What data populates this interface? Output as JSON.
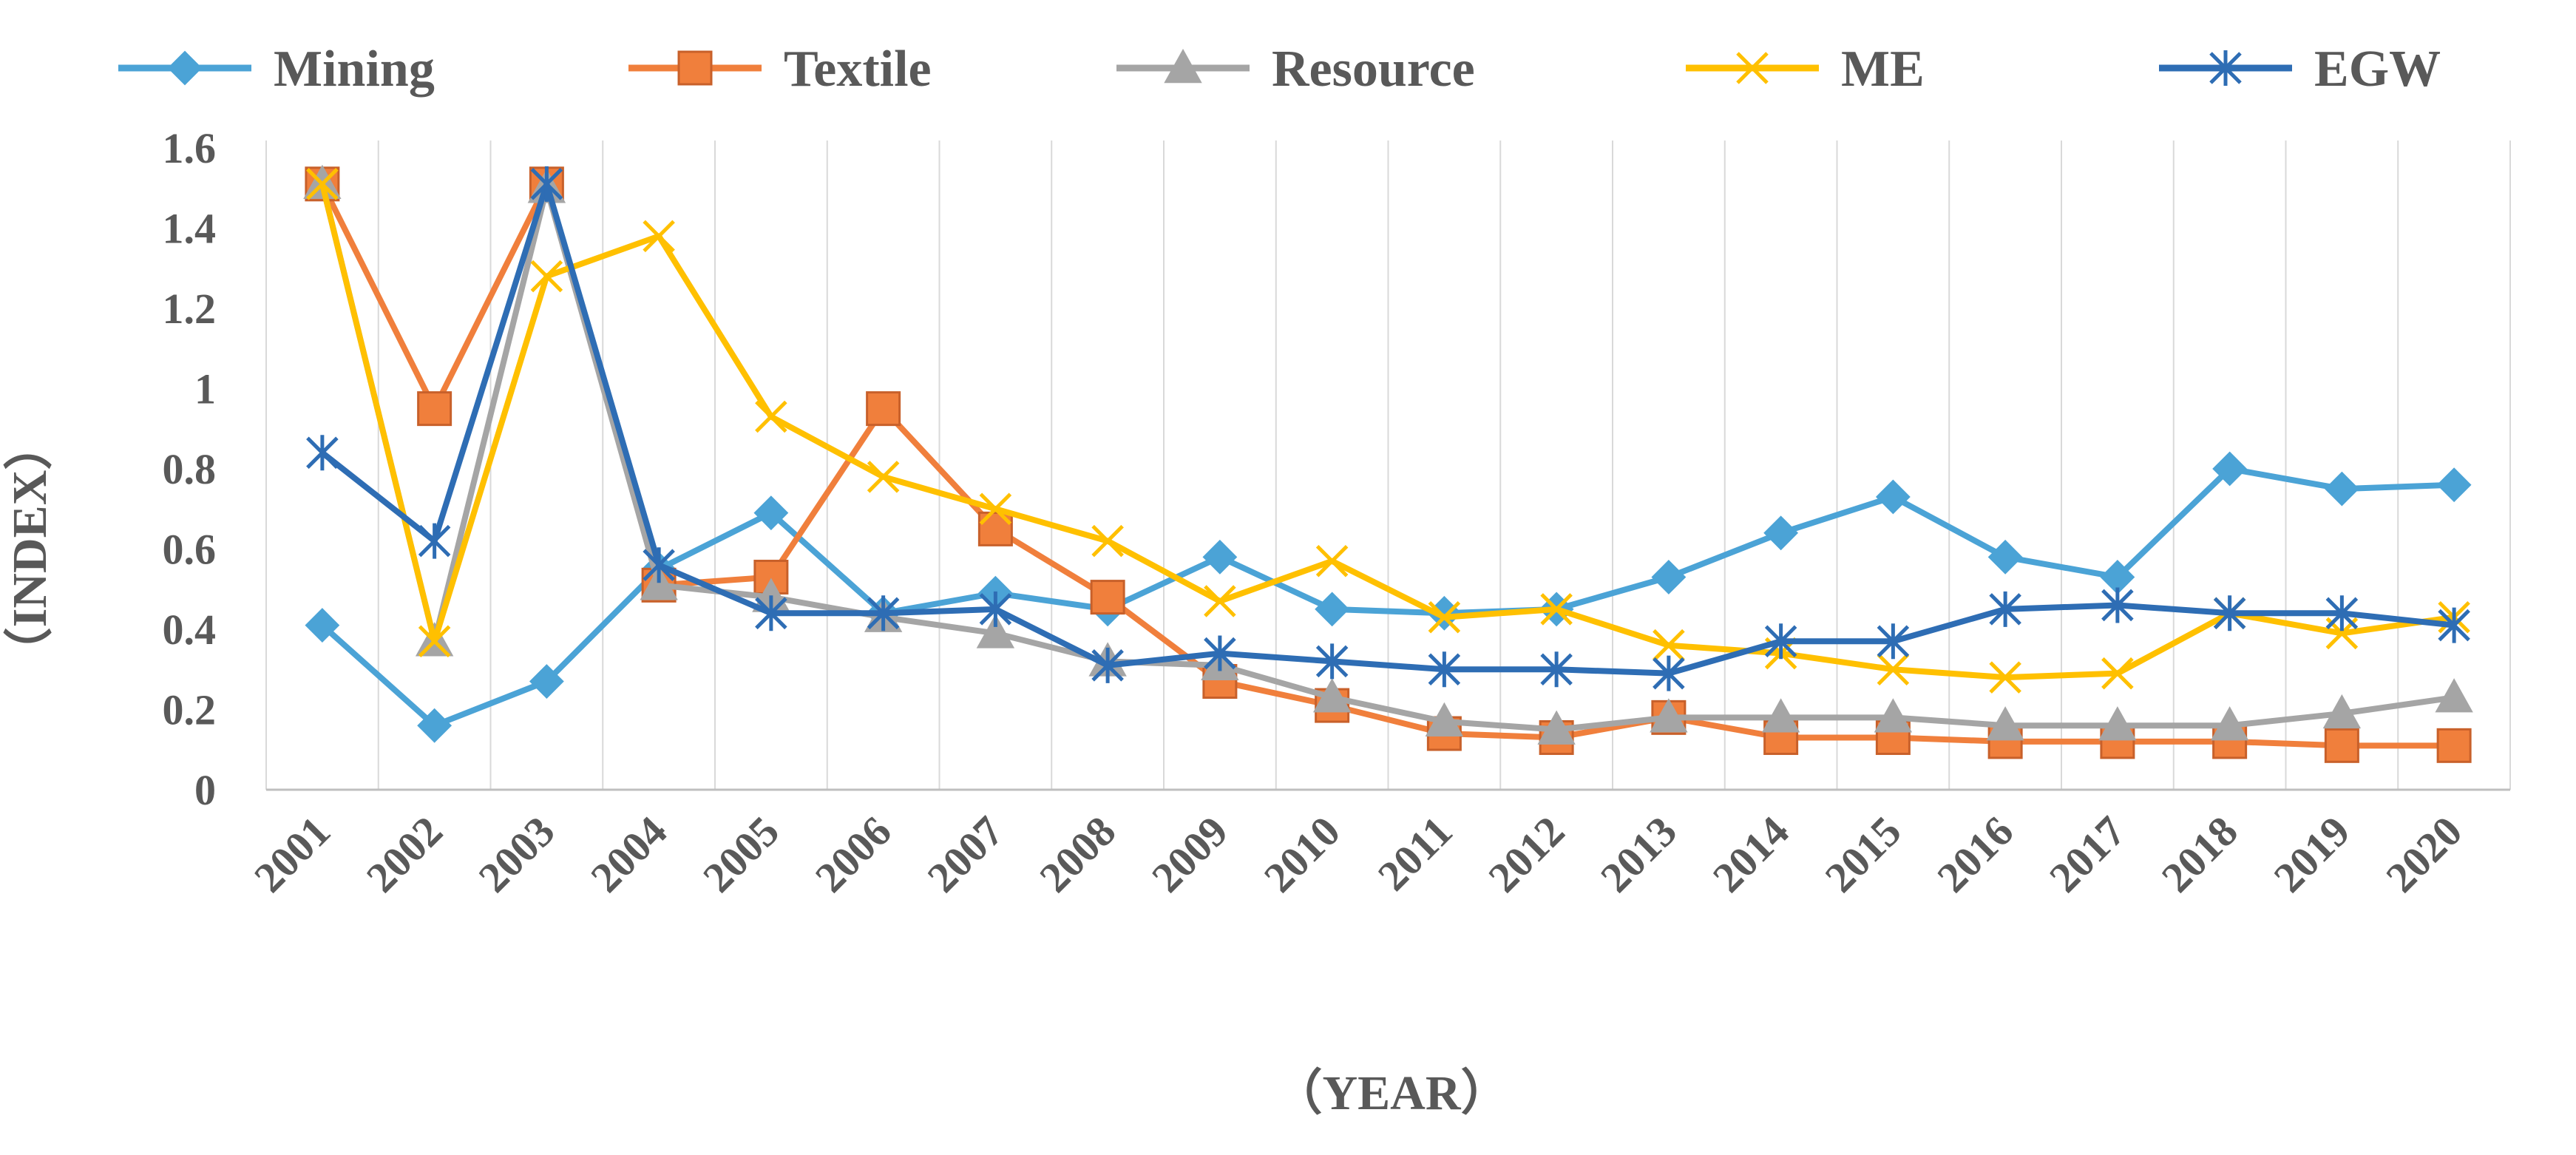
{
  "chart_data": {
    "type": "line",
    "title": "",
    "xlabel": "（YEAR）",
    "ylabel": "（INDEX）",
    "ylim": [
      0,
      1.6
    ],
    "yticks": [
      0,
      0.2,
      0.4,
      0.6,
      0.8,
      1,
      1.2,
      1.4,
      1.6
    ],
    "ytick_labels": [
      "0",
      "0.2",
      "0.4",
      "0.6",
      "0.8",
      "1",
      "1.2",
      "1.4",
      "1.6"
    ],
    "grid": "vertical",
    "legend_position": "top",
    "categories": [
      "2001",
      "2002",
      "2003",
      "2004",
      "2005",
      "2006",
      "2007",
      "2008",
      "2009",
      "2010",
      "2011",
      "2012",
      "2013",
      "2014",
      "2015",
      "2016",
      "2017",
      "2018",
      "2019",
      "2020"
    ],
    "series": [
      {
        "name": "Mining",
        "color": "#4BA3D6",
        "marker": "diamond",
        "values": [
          0.41,
          0.16,
          0.27,
          0.55,
          0.69,
          0.44,
          0.49,
          0.45,
          0.58,
          0.45,
          0.44,
          0.45,
          0.53,
          0.64,
          0.73,
          0.58,
          0.53,
          0.8,
          0.75,
          0.76
        ]
      },
      {
        "name": "Textile",
        "color": "#F07F3C",
        "marker": "square",
        "values": [
          1.51,
          0.95,
          1.51,
          0.51,
          0.53,
          0.95,
          0.65,
          0.48,
          0.27,
          0.21,
          0.14,
          0.13,
          0.18,
          0.13,
          0.13,
          0.12,
          0.12,
          0.12,
          0.11,
          0.11
        ]
      },
      {
        "name": "Resource",
        "color": "#A5A5A5",
        "marker": "triangle",
        "values": [
          1.51,
          0.37,
          1.5,
          0.51,
          0.48,
          0.43,
          0.39,
          0.32,
          0.31,
          0.23,
          0.17,
          0.15,
          0.18,
          0.18,
          0.18,
          0.16,
          0.16,
          0.16,
          0.19,
          0.23
        ]
      },
      {
        "name": "ME",
        "color": "#FFC000",
        "marker": "x",
        "values": [
          1.51,
          0.37,
          1.28,
          1.38,
          0.93,
          0.78,
          0.7,
          0.62,
          0.47,
          0.57,
          0.43,
          0.45,
          0.36,
          0.34,
          0.3,
          0.28,
          0.29,
          0.44,
          0.39,
          0.43
        ]
      },
      {
        "name": "EGW",
        "color": "#2E6DB4",
        "marker": "star",
        "values": [
          0.84,
          0.62,
          1.51,
          0.56,
          0.44,
          0.44,
          0.45,
          0.31,
          0.34,
          0.32,
          0.3,
          0.3,
          0.29,
          0.37,
          0.37,
          0.45,
          0.46,
          0.44,
          0.44,
          0.41
        ]
      }
    ]
  }
}
